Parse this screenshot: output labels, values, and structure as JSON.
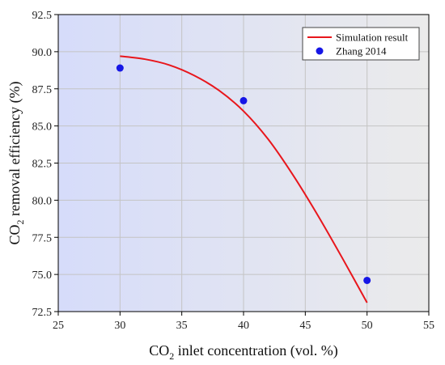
{
  "chart_data": {
    "type": "line",
    "title": "",
    "xlabel": {
      "main": "CO",
      "sub": "2",
      "rest": " inlet concentration (vol. %)"
    },
    "ylabel": {
      "main": "CO",
      "sub": "2",
      "rest": " removal efficiency (%)"
    },
    "xlim": [
      25,
      55
    ],
    "ylim": [
      72.5,
      92.5
    ],
    "xticks": [
      25,
      30,
      35,
      40,
      45,
      50,
      55
    ],
    "yticks": [
      72.5,
      75.0,
      77.5,
      80.0,
      82.5,
      85.0,
      87.5,
      90.0,
      92.5
    ],
    "xtick_labels": [
      "25",
      "30",
      "35",
      "40",
      "45",
      "50",
      "55"
    ],
    "ytick_labels": [
      "72.5",
      "75.0",
      "77.5",
      "80.0",
      "82.5",
      "85.0",
      "87.5",
      "90.0",
      "92.5"
    ],
    "grid": true,
    "legend_position": "top-right",
    "background_gradient": {
      "from": "#d6dcfa",
      "to": "#ebebeb"
    },
    "series": [
      {
        "name": "Simulation result",
        "kind": "line",
        "color": "#e8161c",
        "x": [
          30,
          32,
          34,
          36,
          38,
          40,
          42,
          44,
          46,
          48,
          50
        ],
        "y": [
          89.7,
          89.5,
          89.1,
          88.4,
          87.4,
          86.0,
          84.1,
          81.7,
          79.0,
          76.1,
          73.1
        ]
      },
      {
        "name": "Zhang 2014",
        "kind": "scatter",
        "color": "#1616e6",
        "x": [
          30,
          40,
          50
        ],
        "y": [
          88.9,
          86.7,
          74.6
        ]
      }
    ]
  }
}
